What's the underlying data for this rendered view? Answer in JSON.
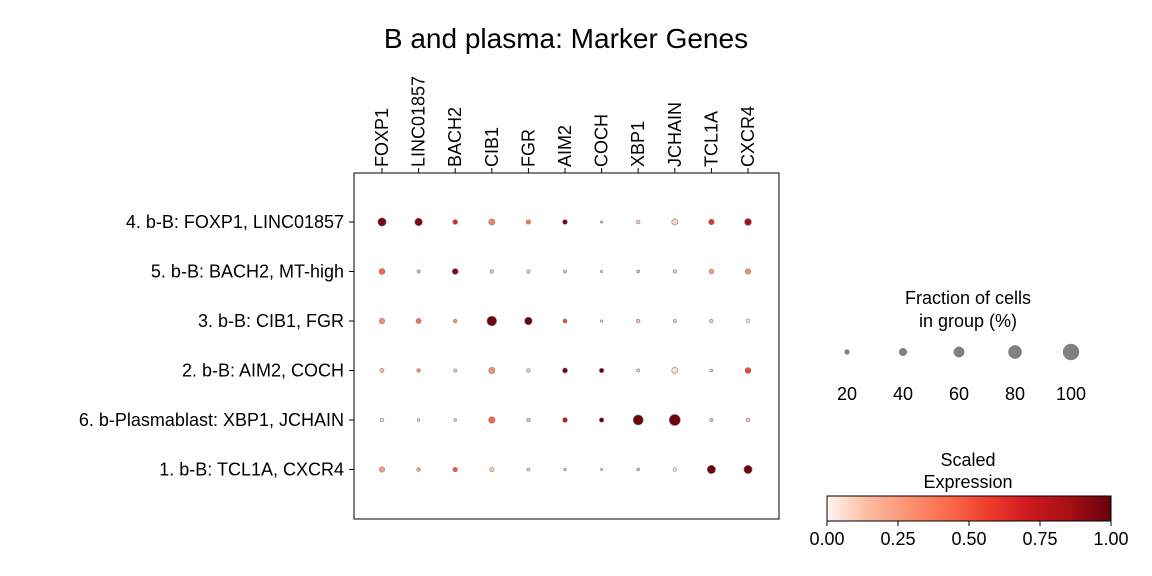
{
  "chart_data": {
    "type": "dotplot",
    "title": "B and plasma: Marker Genes",
    "genes": [
      "FOXP1",
      "LINC01857",
      "BACH2",
      "CIB1",
      "FGR",
      "AIM2",
      "COCH",
      "XBP1",
      "JCHAIN",
      "TCL1A",
      "CXCR4"
    ],
    "groups": [
      "4. b-B: FOXP1, LINC01857",
      "5. b-B: BACH2, MT-high",
      "3. b-B: CIB1, FGR",
      "2. b-B: AIM2, COCH",
      "6. b-Plasmablast: XBP1, JCHAIN",
      "1. b-B: TCL1A, CXCR4"
    ],
    "fraction_pct": [
      [
        45,
        40,
        20,
        30,
        18,
        20,
        3,
        12,
        30,
        25,
        35
      ],
      [
        28,
        8,
        28,
        10,
        10,
        8,
        3,
        6,
        10,
        20,
        25
      ],
      [
        25,
        22,
        12,
        55,
        40,
        15,
        3,
        10,
        8,
        10,
        15
      ],
      [
        15,
        12,
        8,
        30,
        12,
        22,
        18,
        8,
        30,
        5,
        28
      ],
      [
        12,
        5,
        5,
        32,
        10,
        20,
        18,
        58,
        65,
        8,
        15
      ],
      [
        25,
        12,
        18,
        18,
        8,
        4,
        2,
        6,
        12,
        45,
        45
      ]
    ],
    "scaled_expression": [
      [
        0.95,
        0.95,
        0.65,
        0.35,
        0.4,
        0.95,
        0.2,
        0.1,
        0.08,
        0.6,
        0.85
      ],
      [
        0.45,
        0.2,
        0.95,
        0.12,
        0.1,
        0.15,
        0.1,
        0.15,
        0.1,
        0.25,
        0.3
      ],
      [
        0.3,
        0.4,
        0.3,
        0.98,
        0.98,
        0.55,
        0.05,
        0.15,
        0.1,
        0.1,
        0.05
      ],
      [
        0.15,
        0.3,
        0.12,
        0.3,
        0.12,
        0.98,
        0.98,
        0.1,
        0.05,
        0.08,
        0.55
      ],
      [
        0.05,
        0.05,
        0.1,
        0.45,
        0.15,
        0.75,
        0.98,
        0.98,
        0.98,
        0.15,
        0.12
      ],
      [
        0.25,
        0.25,
        0.5,
        0.12,
        0.08,
        0.15,
        0.05,
        0.15,
        0.05,
        0.98,
        0.98
      ]
    ],
    "size_legend": {
      "title": [
        "Fraction of cells",
        "in group (%)"
      ],
      "values": [
        20,
        40,
        60,
        80,
        100
      ],
      "labels": [
        "20",
        "40",
        "60",
        "80",
        "100"
      ]
    },
    "color_legend": {
      "title": [
        "Scaled",
        "Expression"
      ],
      "ticks": [
        0,
        0.25,
        0.5,
        0.75,
        1
      ],
      "tick_labels": [
        "0.00",
        "0.25",
        "0.50",
        "0.75",
        "1.00"
      ]
    },
    "colormap": [
      "#fff5f0",
      "#fcbba1",
      "#fc9272",
      "#fb6a4a",
      "#ef3b2c",
      "#cb181d",
      "#a50f15",
      "#67000d"
    ],
    "marker_edge_color": "#808080",
    "size_legend_color": "#808080"
  }
}
